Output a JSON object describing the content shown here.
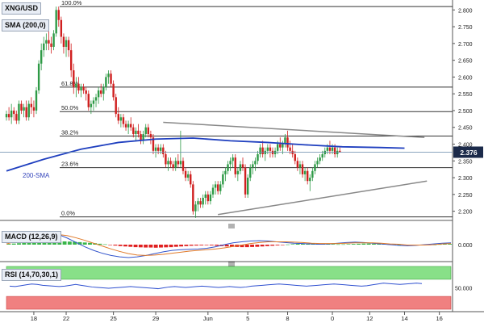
{
  "header": {
    "symbol": "XNG/USD",
    "indicator": "SMA (200,0)",
    "macd_label": "MACD (12,26,9)",
    "rsi_label": "RSI (14,70,30,1)"
  },
  "price_tag": "2.376",
  "sma_label": "200-SMA",
  "colors": {
    "bull": "#2e9a46",
    "bear": "#d01f1f",
    "sma": "#1f3fbf",
    "fib": "#333333",
    "trend": "#888888",
    "macd_line": "#3355cc",
    "signal_line": "#e07a2a",
    "rsi_line": "#2f50d0",
    "rsi_over": "#88e088",
    "rsi_under": "#f08080",
    "tag_bg": "#1b2a4a"
  },
  "chart_data": [
    {
      "type": "candlestick",
      "title": "XNG/USD",
      "y_ticks": [
        "2.800",
        "2.750",
        "2.700",
        "2.650",
        "2.600",
        "2.550",
        "2.500",
        "2.450",
        "2.400",
        "2.350",
        "2.300",
        "2.250",
        "2.200"
      ],
      "ylim": [
        2.175,
        2.82
      ],
      "x_ticks": [
        {
          "label": "18",
          "i": 11
        },
        {
          "label": "22",
          "i": 24
        },
        {
          "label": "25",
          "i": 43
        },
        {
          "label": "29",
          "i": 60
        },
        {
          "label": "Jun",
          "i": 81
        },
        {
          "label": "5",
          "i": 97
        },
        {
          "label": "8",
          "i": 113
        },
        {
          "label": "0",
          "i": 131
        },
        {
          "label": "12",
          "i": 146
        },
        {
          "label": "14",
          "i": 160
        },
        {
          "label": "16",
          "i": 174
        }
      ],
      "fibonacci": [
        {
          "label": "100.0%",
          "value": 2.81
        },
        {
          "label": "61.8%",
          "value": 2.57
        },
        {
          "label": "50.0%",
          "value": 2.497
        },
        {
          "label": "38.2%",
          "value": 2.424
        },
        {
          "label": "23.6%",
          "value": 2.33
        },
        {
          "label": "0.0%",
          "value": 2.183
        }
      ],
      "current_price": 2.376,
      "trendlines": [
        {
          "from": [
            63,
            2.465
          ],
          "to": [
            168,
            2.42
          ]
        },
        {
          "from": [
            85,
            2.19
          ],
          "to": [
            169,
            2.29
          ]
        }
      ],
      "sma_200": [
        [
          0,
          2.32
        ],
        [
          15,
          2.355
        ],
        [
          30,
          2.385
        ],
        [
          45,
          2.405
        ],
        [
          60,
          2.415
        ],
        [
          75,
          2.418
        ],
        [
          90,
          2.41
        ],
        [
          105,
          2.405
        ],
        [
          120,
          2.398
        ],
        [
          135,
          2.392
        ],
        [
          150,
          2.39
        ],
        [
          160,
          2.388
        ]
      ],
      "candles": [
        [
          2.48,
          2.5,
          2.47,
          2.49
        ],
        [
          2.49,
          2.51,
          2.47,
          2.48
        ],
        [
          2.48,
          2.52,
          2.46,
          2.5
        ],
        [
          2.5,
          2.51,
          2.47,
          2.49
        ],
        [
          2.49,
          2.5,
          2.46,
          2.47
        ],
        [
          2.47,
          2.53,
          2.46,
          2.52
        ],
        [
          2.52,
          2.53,
          2.49,
          2.5
        ],
        [
          2.5,
          2.52,
          2.48,
          2.51
        ],
        [
          2.51,
          2.53,
          2.47,
          2.48
        ],
        [
          2.48,
          2.53,
          2.47,
          2.52
        ],
        [
          2.52,
          2.54,
          2.49,
          2.51
        ],
        [
          2.51,
          2.53,
          2.48,
          2.5
        ],
        [
          2.5,
          2.57,
          2.49,
          2.56
        ],
        [
          2.56,
          2.65,
          2.55,
          2.64
        ],
        [
          2.64,
          2.7,
          2.62,
          2.68
        ],
        [
          2.68,
          2.72,
          2.66,
          2.7
        ],
        [
          2.7,
          2.73,
          2.68,
          2.71
        ],
        [
          2.71,
          2.74,
          2.68,
          2.7
        ],
        [
          2.7,
          2.72,
          2.67,
          2.69
        ],
        [
          2.69,
          2.74,
          2.68,
          2.73
        ],
        [
          2.73,
          2.81,
          2.72,
          2.8
        ],
        [
          2.8,
          2.81,
          2.75,
          2.77
        ],
        [
          2.77,
          2.78,
          2.7,
          2.72
        ],
        [
          2.72,
          2.73,
          2.67,
          2.69
        ],
        [
          2.69,
          2.72,
          2.66,
          2.71
        ],
        [
          2.71,
          2.72,
          2.66,
          2.68
        ],
        [
          2.68,
          2.7,
          2.6,
          2.62
        ],
        [
          2.62,
          2.64,
          2.55,
          2.57
        ],
        [
          2.57,
          2.6,
          2.54,
          2.58
        ],
        [
          2.58,
          2.6,
          2.55,
          2.56
        ],
        [
          2.56,
          2.58,
          2.54,
          2.57
        ],
        [
          2.57,
          2.58,
          2.55,
          2.56
        ],
        [
          2.56,
          2.57,
          2.53,
          2.55
        ],
        [
          2.55,
          2.56,
          2.5,
          2.51
        ],
        [
          2.51,
          2.53,
          2.49,
          2.52
        ],
        [
          2.52,
          2.54,
          2.5,
          2.53
        ],
        [
          2.53,
          2.55,
          2.51,
          2.54
        ],
        [
          2.54,
          2.57,
          2.52,
          2.56
        ],
        [
          2.56,
          2.58,
          2.54,
          2.55
        ],
        [
          2.55,
          2.58,
          2.53,
          2.57
        ],
        [
          2.57,
          2.61,
          2.56,
          2.6
        ],
        [
          2.6,
          2.62,
          2.58,
          2.61
        ],
        [
          2.61,
          2.62,
          2.57,
          2.58
        ],
        [
          2.58,
          2.59,
          2.53,
          2.54
        ],
        [
          2.54,
          2.55,
          2.48,
          2.49
        ],
        [
          2.49,
          2.51,
          2.46,
          2.47
        ],
        [
          2.47,
          2.49,
          2.45,
          2.48
        ],
        [
          2.48,
          2.49,
          2.45,
          2.46
        ],
        [
          2.46,
          2.47,
          2.44,
          2.45
        ],
        [
          2.45,
          2.47,
          2.43,
          2.46
        ],
        [
          2.46,
          2.48,
          2.44,
          2.45
        ],
        [
          2.45,
          2.46,
          2.42,
          2.43
        ],
        [
          2.43,
          2.45,
          2.41,
          2.44
        ],
        [
          2.44,
          2.46,
          2.42,
          2.43
        ],
        [
          2.43,
          2.44,
          2.4,
          2.41
        ],
        [
          2.41,
          2.44,
          2.4,
          2.43
        ],
        [
          2.43,
          2.46,
          2.42,
          2.45
        ],
        [
          2.45,
          2.46,
          2.42,
          2.43
        ],
        [
          2.43,
          2.44,
          2.4,
          2.42
        ],
        [
          2.42,
          2.43,
          2.37,
          2.38
        ],
        [
          2.38,
          2.4,
          2.36,
          2.39
        ],
        [
          2.39,
          2.4,
          2.37,
          2.38
        ],
        [
          2.38,
          2.4,
          2.37,
          2.39
        ],
        [
          2.39,
          2.4,
          2.36,
          2.37
        ],
        [
          2.37,
          2.38,
          2.33,
          2.34
        ],
        [
          2.34,
          2.36,
          2.32,
          2.35
        ],
        [
          2.35,
          2.36,
          2.33,
          2.34
        ],
        [
          2.34,
          2.35,
          2.32,
          2.33
        ],
        [
          2.33,
          2.36,
          2.32,
          2.35
        ],
        [
          2.35,
          2.37,
          2.33,
          2.34
        ],
        [
          2.34,
          2.44,
          2.33,
          2.35
        ],
        [
          2.35,
          2.36,
          2.31,
          2.32
        ],
        [
          2.32,
          2.33,
          2.29,
          2.3
        ],
        [
          2.3,
          2.32,
          2.29,
          2.31
        ],
        [
          2.31,
          2.32,
          2.27,
          2.28
        ],
        [
          2.28,
          2.29,
          2.19,
          2.2
        ],
        [
          2.2,
          2.23,
          2.18,
          2.22
        ],
        [
          2.22,
          2.24,
          2.2,
          2.23
        ],
        [
          2.23,
          2.24,
          2.21,
          2.22
        ],
        [
          2.22,
          2.25,
          2.21,
          2.24
        ],
        [
          2.24,
          2.26,
          2.22,
          2.25
        ],
        [
          2.25,
          2.26,
          2.22,
          2.23
        ],
        [
          2.23,
          2.26,
          2.22,
          2.25
        ],
        [
          2.25,
          2.28,
          2.24,
          2.27
        ],
        [
          2.27,
          2.29,
          2.25,
          2.28
        ],
        [
          2.28,
          2.29,
          2.25,
          2.26
        ],
        [
          2.26,
          2.29,
          2.25,
          2.28
        ],
        [
          2.28,
          2.32,
          2.27,
          2.31
        ],
        [
          2.31,
          2.33,
          2.29,
          2.32
        ],
        [
          2.32,
          2.35,
          2.31,
          2.34
        ],
        [
          2.34,
          2.36,
          2.32,
          2.35
        ],
        [
          2.35,
          2.37,
          2.33,
          2.36
        ],
        [
          2.36,
          2.37,
          2.3,
          2.31
        ],
        [
          2.31,
          2.33,
          2.29,
          2.32
        ],
        [
          2.32,
          2.35,
          2.31,
          2.34
        ],
        [
          2.34,
          2.36,
          2.32,
          2.33
        ],
        [
          2.33,
          2.34,
          2.24,
          2.25
        ],
        [
          2.25,
          2.31,
          2.24,
          2.3
        ],
        [
          2.3,
          2.34,
          2.29,
          2.33
        ],
        [
          2.33,
          2.35,
          2.31,
          2.34
        ],
        [
          2.34,
          2.36,
          2.32,
          2.35
        ],
        [
          2.35,
          2.38,
          2.34,
          2.37
        ],
        [
          2.37,
          2.4,
          2.36,
          2.39
        ],
        [
          2.39,
          2.41,
          2.36,
          2.37
        ],
        [
          2.37,
          2.39,
          2.35,
          2.38
        ],
        [
          2.38,
          2.4,
          2.37,
          2.39
        ],
        [
          2.39,
          2.4,
          2.36,
          2.38
        ],
        [
          2.38,
          2.39,
          2.36,
          2.37
        ],
        [
          2.37,
          2.39,
          2.36,
          2.38
        ],
        [
          2.38,
          2.41,
          2.37,
          2.4
        ],
        [
          2.4,
          2.42,
          2.38,
          2.39
        ],
        [
          2.39,
          2.41,
          2.37,
          2.4
        ],
        [
          2.4,
          2.43,
          2.39,
          2.42
        ],
        [
          2.42,
          2.44,
          2.38,
          2.39
        ],
        [
          2.39,
          2.41,
          2.37,
          2.38
        ],
        [
          2.38,
          2.4,
          2.36,
          2.37
        ],
        [
          2.37,
          2.38,
          2.34,
          2.35
        ],
        [
          2.35,
          2.36,
          2.32,
          2.33
        ],
        [
          2.33,
          2.35,
          2.31,
          2.34
        ],
        [
          2.34,
          2.35,
          2.3,
          2.31
        ],
        [
          2.31,
          2.33,
          2.29,
          2.32
        ],
        [
          2.32,
          2.33,
          2.28,
          2.29
        ],
        [
          2.29,
          2.31,
          2.26,
          2.3
        ],
        [
          2.3,
          2.33,
          2.29,
          2.32
        ],
        [
          2.32,
          2.35,
          2.31,
          2.34
        ],
        [
          2.34,
          2.36,
          2.33,
          2.35
        ],
        [
          2.35,
          2.37,
          2.34,
          2.36
        ],
        [
          2.36,
          2.38,
          2.35,
          2.37
        ],
        [
          2.37,
          2.39,
          2.36,
          2.38
        ],
        [
          2.38,
          2.4,
          2.37,
          2.39
        ],
        [
          2.39,
          2.41,
          2.37,
          2.38
        ],
        [
          2.38,
          2.4,
          2.37,
          2.39
        ],
        [
          2.39,
          2.4,
          2.36,
          2.37
        ],
        [
          2.37,
          2.39,
          2.36,
          2.38
        ],
        [
          2.38,
          2.39,
          2.375,
          2.376
        ]
      ]
    },
    {
      "type": "bar",
      "title": "MACD (12,26,9)",
      "y_ticks": [
        "0.000"
      ],
      "histogram": [
        0.004,
        0.006,
        0.008,
        0.01,
        0.012,
        0.013,
        0.014,
        0.015,
        0.016,
        0.017,
        0.018,
        0.018,
        0.017,
        0.016,
        0.014,
        0.012,
        0.01,
        0.008,
        0.005,
        0.002,
        -0.002,
        -0.005,
        -0.008,
        -0.01,
        -0.012,
        -0.014,
        -0.015,
        -0.016,
        -0.016,
        -0.017,
        -0.016,
        -0.015,
        -0.014,
        -0.012,
        -0.01,
        -0.008,
        -0.006,
        -0.005,
        -0.004,
        -0.003,
        -0.004,
        -0.006,
        -0.008,
        -0.01,
        -0.012,
        -0.013,
        -0.014,
        -0.014,
        -0.013,
        -0.012,
        -0.01,
        -0.008,
        -0.006,
        -0.004,
        -0.002,
        0.001,
        0.003,
        0.005,
        0.006,
        0.007,
        0.007,
        0.006,
        0.005,
        0.004,
        0.003,
        0.002,
        0.002,
        0.003,
        0.004,
        0.005,
        0.006,
        0.006,
        0.005,
        0.004,
        0.003,
        0.002,
        0.001,
        0.0,
        -0.001,
        -0.002,
        -0.003,
        -0.003,
        -0.002,
        -0.001,
        0.0,
        0.002,
        0.003,
        0.004
      ],
      "macd": [
        0.005,
        0.015,
        0.025,
        0.032,
        0.036,
        0.034,
        0.028,
        0.018,
        0.006,
        -0.006,
        -0.016,
        -0.024,
        -0.03,
        -0.034,
        -0.036,
        -0.034,
        -0.03,
        -0.025,
        -0.02,
        -0.016,
        -0.014,
        -0.013,
        -0.012,
        -0.01,
        -0.006,
        0.0,
        0.005,
        0.008,
        0.01,
        0.011,
        0.01,
        0.008,
        0.006,
        0.004,
        0.003,
        0.002,
        0.001,
        0.002,
        0.004,
        0.006,
        0.007,
        0.006,
        0.004,
        0.002,
        0.0,
        -0.002,
        -0.003,
        -0.002,
        0.0,
        0.002,
        0.004,
        0.005
      ],
      "signal": [
        0.002,
        0.008,
        0.014,
        0.02,
        0.025,
        0.028,
        0.028,
        0.025,
        0.019,
        0.012,
        0.004,
        -0.004,
        -0.012,
        -0.019,
        -0.025,
        -0.029,
        -0.03,
        -0.029,
        -0.027,
        -0.024,
        -0.021,
        -0.018,
        -0.016,
        -0.014,
        -0.012,
        -0.009,
        -0.005,
        -0.001,
        0.003,
        0.006,
        0.008,
        0.008,
        0.008,
        0.007,
        0.006,
        0.004,
        0.003,
        0.003,
        0.003,
        0.004,
        0.005,
        0.005,
        0.005,
        0.004,
        0.002,
        0.001,
        -0.001,
        -0.001,
        -0.001,
        0.0,
        0.002,
        0.003
      ]
    },
    {
      "type": "line",
      "title": "RSI (14,70,30,1)",
      "y_ticks": [
        "50.000"
      ],
      "ylim": [
        0,
        100
      ],
      "overbought": 70,
      "oversold": 30,
      "values": [
        54,
        53,
        55,
        57,
        59,
        58,
        56,
        55,
        54,
        53,
        54,
        56,
        58,
        56,
        54,
        52,
        51,
        50,
        49,
        50,
        51,
        52,
        53,
        52,
        51,
        50,
        49,
        48,
        50,
        52,
        53,
        52,
        51,
        52,
        53,
        54,
        53,
        52,
        51,
        52,
        53,
        52,
        51,
        52,
        54,
        55,
        56,
        57,
        58,
        59,
        58,
        57,
        56,
        55,
        54,
        55,
        56,
        57,
        58,
        59,
        58,
        57,
        56,
        55,
        54,
        55,
        57,
        59,
        61,
        60,
        59,
        58,
        59,
        60,
        61,
        60
      ]
    }
  ]
}
